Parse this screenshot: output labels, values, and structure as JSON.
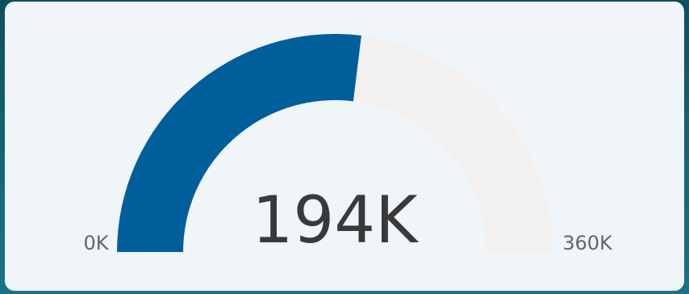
{
  "chart_data": {
    "type": "gauge",
    "min": 0,
    "max": 360000,
    "value": 194000,
    "min_label": "0K",
    "max_label": "360K",
    "value_label": "194K",
    "colors": {
      "fill": "#005f9b",
      "track": "#f2f1ef",
      "card": "#eff5f8"
    }
  }
}
